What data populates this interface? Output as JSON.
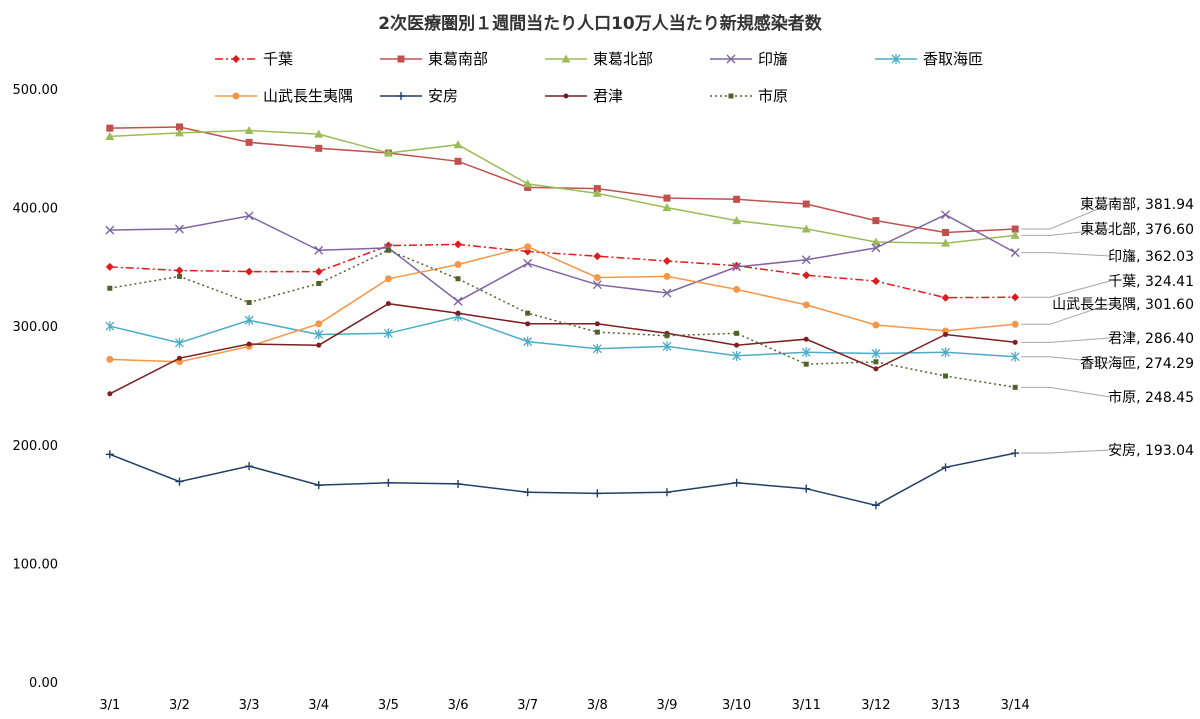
{
  "chart_data": {
    "type": "line",
    "title": "2次医療圏別１週間当たり人口10万人当たり新規感染者数",
    "xlabel": "",
    "ylabel": "",
    "ylim": [
      0,
      500
    ],
    "yticks": [
      "0.00",
      "100.00",
      "200.00",
      "300.00",
      "400.00",
      "500.00"
    ],
    "grid": false,
    "legend": "top",
    "categories": [
      "3/1",
      "3/2",
      "3/3",
      "3/4",
      "3/5",
      "3/6",
      "3/7",
      "3/8",
      "3/9",
      "3/10",
      "3/11",
      "3/12",
      "3/13",
      "3/14"
    ],
    "series": [
      {
        "name": "千葉",
        "color": "#e31a1c",
        "marker": "diamond",
        "dash": "dashdot",
        "values": [
          350,
          347,
          346,
          346,
          368,
          369,
          363,
          359,
          355,
          351,
          343,
          338,
          324,
          324.41
        ]
      },
      {
        "name": "東葛南部",
        "color": "#c0504d",
        "marker": "square",
        "dash": "solid",
        "values": [
          467,
          468,
          455,
          450,
          446,
          439,
          417,
          416,
          408,
          407,
          403,
          389,
          379,
          381.94
        ]
      },
      {
        "name": "東葛北部",
        "color": "#9bbb59",
        "marker": "triangle",
        "dash": "solid",
        "values": [
          460,
          463,
          465,
          462,
          446,
          453,
          420,
          412,
          400,
          389,
          382,
          371,
          370,
          376.6
        ]
      },
      {
        "name": "印旛",
        "color": "#8064a2",
        "marker": "x",
        "dash": "solid",
        "values": [
          381,
          382,
          393,
          364,
          366,
          321,
          353,
          335,
          328,
          350,
          356,
          366,
          394,
          362.03
        ]
      },
      {
        "name": "香取海匝",
        "color": "#4bacc6",
        "marker": "star",
        "dash": "solid",
        "values": [
          300,
          286,
          305,
          293,
          294,
          308,
          287,
          281,
          283,
          275,
          278,
          277,
          278,
          274.29
        ]
      },
      {
        "name": "山武長生夷隅",
        "color": "#f79646",
        "marker": "circle",
        "dash": "solid",
        "values": [
          272,
          270,
          283,
          302,
          340,
          352,
          367,
          341,
          342,
          331,
          318,
          301,
          296,
          301.6
        ]
      },
      {
        "name": "安房",
        "color": "#1f3f66",
        "marker": "plus",
        "dash": "solid",
        "values": [
          192,
          169,
          182,
          166,
          168,
          167,
          160,
          159,
          160,
          168,
          163,
          149,
          181,
          193.04
        ]
      },
      {
        "name": "君津",
        "color": "#7b1f1f",
        "marker": "dot",
        "dash": "solid",
        "values": [
          243,
          273,
          285,
          284,
          319,
          311,
          302,
          302,
          294,
          284,
          289,
          264,
          293,
          286.4
        ]
      },
      {
        "name": "市原",
        "color": "#4f6228",
        "marker": "smallsquare",
        "dash": "dotted",
        "values": [
          332,
          342,
          320,
          336,
          364,
          340,
          311,
          295,
          292,
          294,
          268,
          270,
          258,
          248.45
        ]
      }
    ],
    "end_labels": [
      {
        "series": "東葛南部",
        "text": "東葛南部, 381.94"
      },
      {
        "series": "東葛北部",
        "text": "東葛北部, 376.60"
      },
      {
        "series": "印旛",
        "text": "印旛, 362.03"
      },
      {
        "series": "千葉",
        "text": "千葉, 324.41"
      },
      {
        "series": "山武長生夷隅",
        "text": "山武長生夷隅, 301.60"
      },
      {
        "series": "君津",
        "text": "君津, 286.40"
      },
      {
        "series": "香取海匝",
        "text": "香取海匝, 274.29"
      },
      {
        "series": "市原",
        "text": "市原, 248.45"
      },
      {
        "series": "安房",
        "text": "安房, 193.04"
      }
    ]
  }
}
